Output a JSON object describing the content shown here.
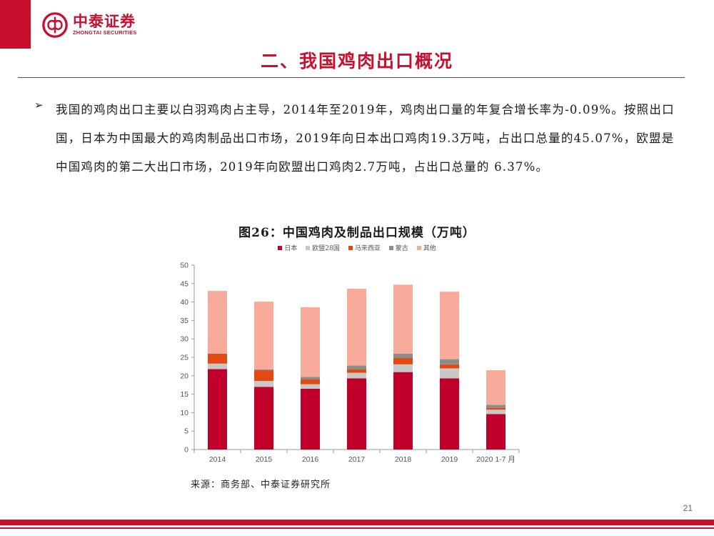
{
  "header": {
    "logo_cn": "中泰证券",
    "logo_en": "ZHONGTAI SECURITIES",
    "brand_color": "#c8102e"
  },
  "page": {
    "title": "二、我国鸡肉出口概况",
    "bullet_symbol": "➢",
    "paragraph": "我国的鸡肉出口主要以白羽鸡肉占主导，2014年至2019年，鸡肉出口量的年复合增长率为-0.09%。按照出口国，日本为中国最大的鸡肉制品出口市场，2019年向日本出口鸡肉19.3万吨，占出口总量的45.07%，欧盟是中国鸡肉的第二大出口市场，2019年向欧盟出口鸡肉2.7万吨，占出口总量的 6.37%。",
    "source": "来源：商务部、中泰证券研究所",
    "page_number": "21"
  },
  "chart_data": {
    "type": "bar",
    "stacked": true,
    "title": "图26：中国鸡肉及制品出口规模（万吨）",
    "categories": [
      "2014",
      "2015",
      "2016",
      "2017",
      "2018",
      "2019",
      "2020 1-7 月"
    ],
    "series": [
      {
        "name": "日本",
        "color": "#c0002a",
        "values": [
          21.8,
          17.0,
          16.5,
          19.3,
          21.0,
          19.3,
          9.6
        ]
      },
      {
        "name": "欧盟28国",
        "color": "#c8c8c8",
        "values": [
          1.5,
          1.6,
          1.2,
          1.5,
          2.1,
          2.7,
          1.2
        ]
      },
      {
        "name": "马来西亚",
        "color": "#e24a12",
        "values": [
          2.7,
          2.9,
          1.3,
          0.9,
          1.7,
          1.1,
          0.5
        ]
      },
      {
        "name": "蒙古",
        "color": "#8c8c8c",
        "values": [
          0.0,
          0.2,
          0.7,
          1.1,
          1.2,
          1.4,
          0.8
        ]
      },
      {
        "name": "其他",
        "color": "#f8ab9a",
        "values": [
          17.0,
          18.4,
          18.9,
          20.8,
          18.7,
          18.3,
          9.4
        ]
      }
    ],
    "ylim": [
      0,
      50
    ],
    "yticks": [
      0,
      5,
      10,
      15,
      20,
      25,
      30,
      35,
      40,
      45,
      50
    ],
    "grid": false,
    "legend_position": "top"
  }
}
